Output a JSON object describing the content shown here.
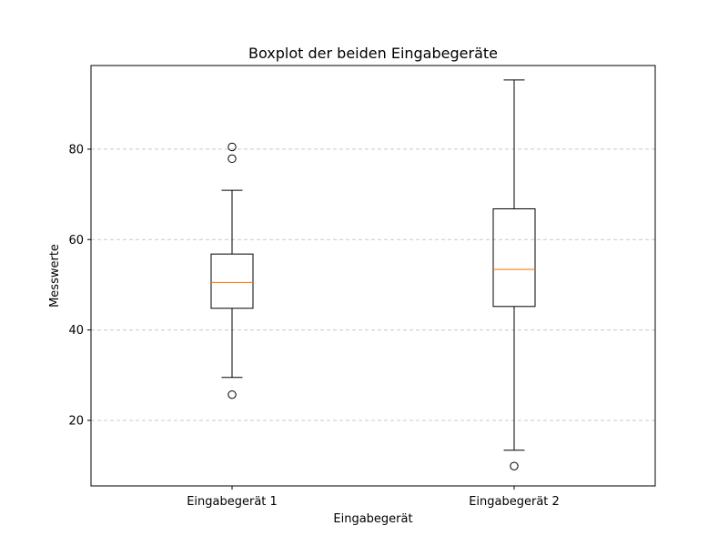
{
  "chart_data": {
    "type": "box",
    "title": "Boxplot der beiden Eingabegeräte",
    "xlabel": "Eingabegerät",
    "ylabel": "Messwerte",
    "categories": [
      "Eingabegerät 1",
      "Eingabegerät 2"
    ],
    "ylim": [
      5.5,
      98.5
    ],
    "yticks": [
      20,
      40,
      60,
      80
    ],
    "grid": {
      "axis": "y",
      "style": "dashed"
    },
    "colors": {
      "box": "#000000",
      "median": "#ff7f0e",
      "grid": "#c8c8c8"
    },
    "boxes": [
      {
        "name": "Eingabegerät 1",
        "whisker_low": 29.5,
        "q1": 44.8,
        "median": 50.5,
        "q3": 56.8,
        "whisker_high": 70.9,
        "outliers": [
          25.7,
          77.9,
          80.5
        ]
      },
      {
        "name": "Eingabegerät 2",
        "whisker_low": 13.4,
        "q1": 45.2,
        "median": 53.4,
        "q3": 66.8,
        "whisker_high": 95.3,
        "outliers": [
          9.9
        ]
      }
    ]
  }
}
